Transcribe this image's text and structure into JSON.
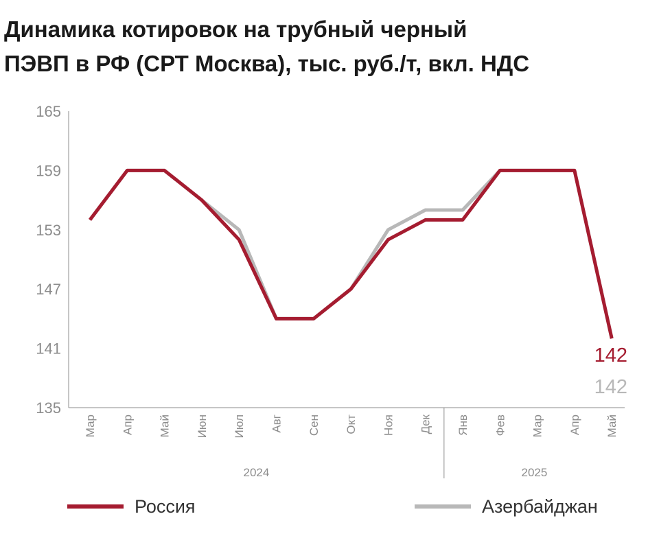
{
  "title_line1": "Динамика котировок на трубный черный",
  "title_line2": "ПЭВП в РФ (СРТ Москва), тыс. руб./т, вкл. НДС",
  "colors": {
    "russia": "#a51c30",
    "azerbaijan": "#b8b8b8",
    "axis": "#8c8c8c",
    "tick_text": "#8c8c8c"
  },
  "legend": {
    "russia": "Россия",
    "azerbaijan": "Азербайджан"
  },
  "chart_data": {
    "type": "line",
    "title": "Динамика котировок на трубный черный ПЭВП в РФ (СРТ Москва), тыс. руб./т, вкл. НДС",
    "categories": [
      "Мар",
      "Апр",
      "Май",
      "Июн",
      "Июл",
      "Авг",
      "Сен",
      "Окт",
      "Ноя",
      "Дек",
      "Янв",
      "Фев",
      "Мар",
      "Апр",
      "Май"
    ],
    "year_groups": [
      {
        "label": "2024",
        "from": 0,
        "to": 9
      },
      {
        "label": "2025",
        "from": 10,
        "to": 14
      }
    ],
    "y_ticks": [
      135,
      141,
      147,
      153,
      159,
      165
    ],
    "ylim": [
      135,
      165
    ],
    "grid": false,
    "legend_position": "bottom",
    "series": [
      {
        "name": "Азербайджан",
        "color": "#b8b8b8",
        "values": [
          154,
          159,
          159,
          156,
          153,
          144,
          144,
          147,
          153,
          155,
          155,
          159,
          159,
          159,
          142
        ]
      },
      {
        "name": "Россия",
        "color": "#a51c30",
        "values": [
          154,
          159,
          159,
          156,
          152,
          144,
          144,
          147,
          152,
          154,
          154,
          159,
          159,
          159,
          142
        ]
      }
    ],
    "end_labels": [
      {
        "series": "Россия",
        "text": "142"
      },
      {
        "series": "Азербайджан",
        "text": "142"
      }
    ]
  }
}
